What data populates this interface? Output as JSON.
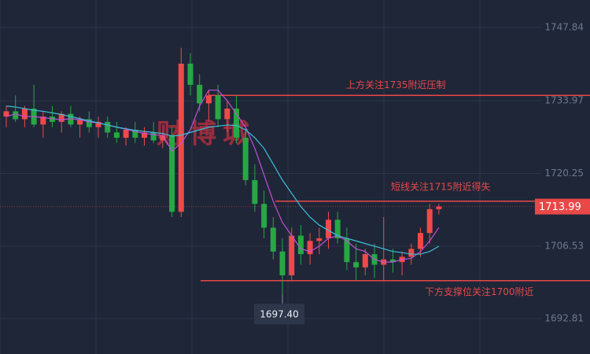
{
  "chart_data": {
    "type": "candlestick",
    "watermark": "财博城",
    "ylim": [
      1686.13,
      1753.03
    ],
    "yticks": [
      1747.84,
      1733.97,
      1720.25,
      1706.53,
      1692.81
    ],
    "grid": true,
    "up_color": "#ef4a4a",
    "down_color": "#27a844",
    "open": [
      1731,
      1732,
      1730.5,
      1732.5,
      1729.5,
      1731,
      1730,
      1731.5,
      1729.5,
      1730.5,
      1729,
      1730,
      1728,
      1727,
      1728.5,
      1727,
      1728,
      1726.5,
      1727.5,
      1713,
      1741,
      1737,
      1733.5,
      1735,
      1730.5,
      1732.5,
      1727,
      1719,
      1714.5,
      1710,
      1705.5,
      1701,
      1708.5,
      1705,
      1707.5,
      1708,
      1711.5,
      1708,
      1703.5,
      1702.5,
      1705,
      1703,
      1704,
      1703.5,
      1704.5,
      1706,
      1709,
      1713.5
    ],
    "high": [
      1733,
      1735,
      1733,
      1737,
      1732,
      1733,
      1732,
      1733,
      1731,
      1732,
      1731,
      1731,
      1730,
      1729,
      1730,
      1729,
      1730,
      1728,
      1729,
      1744,
      1743,
      1739,
      1736,
      1737,
      1734,
      1735,
      1729,
      1722,
      1717,
      1712,
      1708,
      1710,
      1710.5,
      1709,
      1710,
      1713,
      1713,
      1710,
      1707,
      1706,
      1707,
      1712,
      1706,
      1705.5,
      1707,
      1710,
      1714.5,
      1714.5
    ],
    "low": [
      1729,
      1730,
      1729,
      1729,
      1727,
      1729,
      1728,
      1729,
      1727,
      1728,
      1727,
      1727,
      1726,
      1725.5,
      1726,
      1725.5,
      1726,
      1725,
      1712,
      1712,
      1735,
      1732,
      1730,
      1729,
      1728,
      1726,
      1718,
      1713,
      1708,
      1704,
      1697.4,
      1700,
      1703,
      1703,
      1705,
      1706,
      1707,
      1702,
      1700,
      1701,
      1700.5,
      1700,
      1701.5,
      1701,
      1703,
      1704.5,
      1707,
      1712.5
    ],
    "close": [
      1732,
      1730.5,
      1732.5,
      1729.5,
      1731,
      1730,
      1731.5,
      1729.5,
      1730.5,
      1729,
      1730,
      1728,
      1727,
      1728.5,
      1727,
      1728,
      1726.5,
      1727.5,
      1713,
      1741,
      1737,
      1733.5,
      1735,
      1730.5,
      1732.5,
      1727,
      1719,
      1714.5,
      1710,
      1705.5,
      1701,
      1708.5,
      1705,
      1707.5,
      1708,
      1711.5,
      1708,
      1703.5,
      1702.5,
      1705,
      1703,
      1704,
      1703.5,
      1704.5,
      1706,
      1709,
      1713.5,
      1713.99
    ],
    "ma_lines": [
      {
        "color": "#c050d8",
        "values": [
          1731,
          1731.5,
          1731,
          1731,
          1730.8,
          1730.6,
          1730.4,
          1730.6,
          1730.4,
          1730,
          1729.8,
          1729.4,
          1729,
          1728.6,
          1728.2,
          1727.8,
          1727.6,
          1727.4,
          1724.5,
          1726,
          1728.5,
          1733,
          1736,
          1736,
          1734,
          1731.5,
          1729,
          1725,
          1720,
          1715,
          1711,
          1708.5,
          1706,
          1705.5,
          1706.5,
          1708,
          1708.5,
          1707.5,
          1706,
          1705.5,
          1704,
          1703.5,
          1703.5,
          1704,
          1704.2,
          1705.5,
          1707.5,
          1710
        ]
      },
      {
        "color": "#3cc0d8",
        "values": [
          1733,
          1732.8,
          1732.5,
          1732.2,
          1732,
          1731.7,
          1731.4,
          1731,
          1730.6,
          1730.2,
          1729.8,
          1729.4,
          1729,
          1728.7,
          1728.4,
          1728.2,
          1728,
          1727.8,
          1727.3,
          1727.5,
          1728,
          1728.5,
          1729,
          1729.2,
          1729.4,
          1729.3,
          1728.5,
          1727,
          1725,
          1722,
          1719,
          1716.5,
          1714,
          1712,
          1710.5,
          1709.5,
          1708.5,
          1708,
          1707.5,
          1707,
          1706.5,
          1706,
          1705.5,
          1705.3,
          1705,
          1705,
          1705.5,
          1706.5
        ]
      }
    ],
    "levels": [
      {
        "value": 1735,
        "label": "上方关注1735附近压制",
        "color": "#e84848"
      },
      {
        "value": 1715,
        "label": "短线关注1715附近得失",
        "color": "#e84848"
      },
      {
        "value": 1700,
        "label": "下方支撑位关注1700附近",
        "color": "#e84848"
      }
    ],
    "last_price": 1713.99,
    "low_marker": {
      "value": 1697.4,
      "label": "1697.40"
    }
  }
}
